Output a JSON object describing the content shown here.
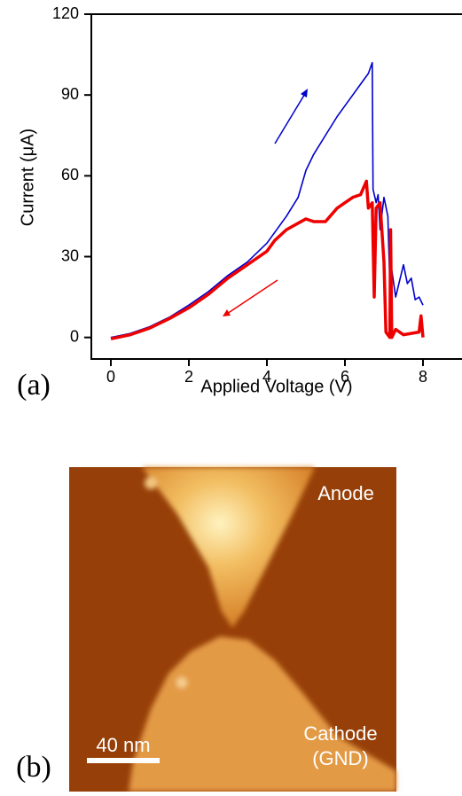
{
  "chart_data": {
    "type": "line",
    "x_label": "Applied Voltage (V)",
    "y_label": "Current (μA)",
    "panel_label": "(a)",
    "xlim": [
      -0.5,
      9
    ],
    "ylim": [
      -8,
      120
    ],
    "xticks": [
      0,
      2,
      4,
      6,
      8
    ],
    "yticks": [
      0,
      30,
      60,
      90,
      120
    ],
    "series": [
      {
        "color": "#0000cc",
        "x": [
          0,
          0.5,
          1,
          1.5,
          2,
          2.5,
          3,
          3.5,
          4,
          4.5,
          4.8,
          5,
          5.2,
          5.5,
          5.8,
          6,
          6.2,
          6.4,
          6.6,
          6.7,
          6.72,
          6.8,
          6.85,
          6.9,
          7.0,
          7.1,
          7.15,
          7.2,
          7.3,
          7.5,
          7.6,
          7.7,
          7.8,
          7.9,
          8
        ],
        "values": [
          0,
          1.5,
          4,
          7.5,
          12,
          17,
          23,
          28,
          35,
          45,
          52,
          62,
          68,
          75,
          82,
          86,
          90,
          94,
          98,
          102,
          55,
          50,
          53,
          40,
          52,
          45,
          20,
          25,
          15,
          27,
          20,
          22,
          14,
          15,
          12
        ]
      },
      {
        "color": "#ee0000",
        "x": [
          8,
          7.95,
          7.9,
          7.5,
          7.3,
          7.2,
          7.17,
          7.15,
          7.05,
          7.0,
          6.9,
          6.8,
          6.75,
          6.7,
          6.6,
          6.55,
          6.4,
          6.2,
          6.0,
          5.8,
          5.5,
          5.2,
          5.0,
          4.5,
          4.2,
          4.0,
          3.5,
          3,
          2.5,
          2,
          1.5,
          1,
          0.5,
          0
        ],
        "values": [
          0,
          8,
          2,
          1,
          3,
          0,
          40,
          0,
          2,
          28,
          50,
          48,
          15,
          50,
          48,
          58,
          53,
          52,
          50,
          48,
          43,
          43,
          44,
          40,
          36,
          32,
          27,
          22,
          16,
          11,
          7,
          3.5,
          1,
          -0.5
        ]
      }
    ]
  },
  "image": {
    "panel_label": "(b)",
    "anode": "Anode",
    "cathode": "Cathode",
    "ground": "(GND)",
    "scale_bar": "40 nm"
  }
}
